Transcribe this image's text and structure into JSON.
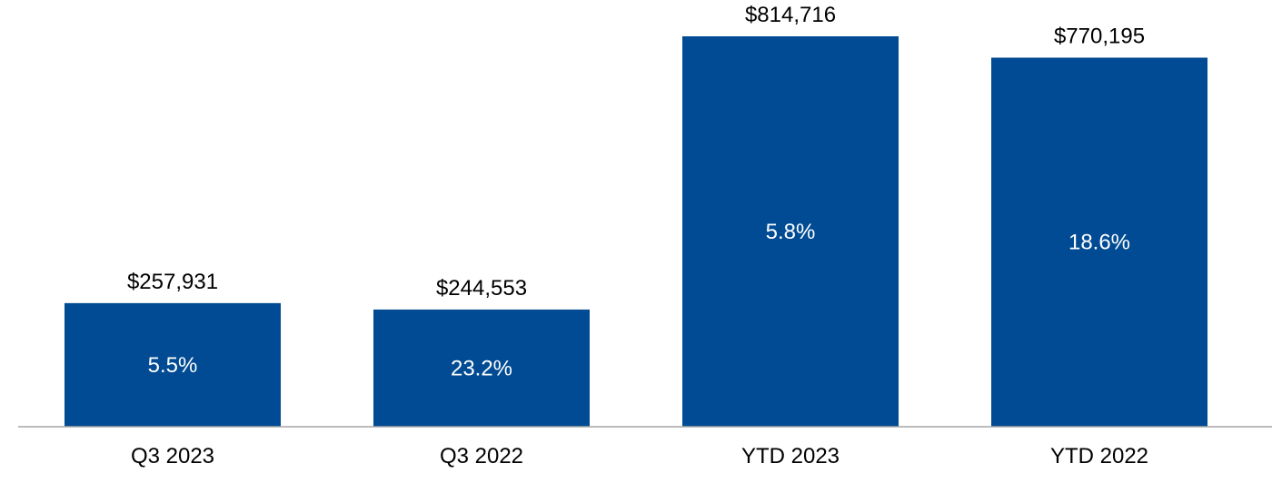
{
  "chart_data": {
    "type": "bar",
    "categories": [
      "Q3 2023",
      "Q3 2022",
      "YTD 2023",
      "YTD 2022"
    ],
    "values": [
      257931,
      244553,
      814716,
      770195
    ],
    "value_labels": [
      "$257,931",
      "$244,553",
      "$814,716",
      "$770,195"
    ],
    "inner_labels": [
      "5.5%",
      "23.2%",
      "5.8%",
      "18.6%"
    ],
    "title": "",
    "xlabel": "",
    "ylabel": "",
    "ylim": [
      0,
      814716
    ],
    "grid": false,
    "legend": "none",
    "bar_color": "#004B93",
    "axis_color": "#A6A6A6",
    "inner_label_color": "#FFFFFF",
    "label_color": "#000000"
  }
}
